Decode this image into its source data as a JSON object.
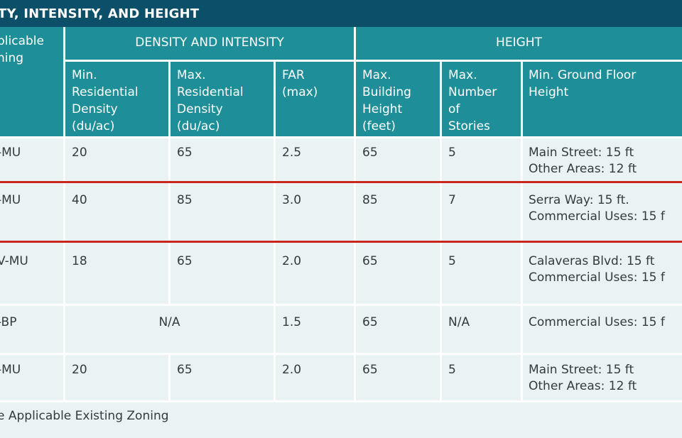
{
  "title": "TY, INTENSITY, AND HEIGHT",
  "headers": {
    "zoning": "plicable\nning",
    "density_group": "DENSITY AND INTENSITY",
    "height_group": "HEIGHT",
    "min_res_density": "Min.\nResidential\nDensity\n(du/ac)",
    "max_res_density": "Max.\nResidential\nDensity\n(du/ac)",
    "far": "FAR\n(max)",
    "max_bldg_height": "Max.\nBuilding\nHeight\n(feet)",
    "max_stories": "Max.\nNumber\nof\nStories",
    "min_ground_floor": "Min. Ground Floor\nHeight"
  },
  "rows": [
    {
      "zone": "-MU",
      "min_density": "20",
      "max_density": "65",
      "far": "2.5",
      "height": "65",
      "stories": "5",
      "ground_floor": "Main Street: 15 ft\nOther Areas: 12 ft"
    },
    {
      "zone": "-MU",
      "min_density": "40",
      "max_density": "85",
      "far": "3.0",
      "height": "85",
      "stories": "7",
      "ground_floor": "Serra Way: 15 ft.\nCommercial Uses: 15 f"
    },
    {
      "zone": "V-MU",
      "min_density": "18",
      "max_density": "65",
      "far": "2.0",
      "height": "65",
      "stories": "5",
      "ground_floor": "Calaveras Blvd: 15 ft\nCommercial Uses: 15 f"
    },
    {
      "zone": "-BP",
      "density_na": "N/A",
      "far": "1.5",
      "height": "65",
      "stories": "N/A",
      "ground_floor": "Commercial Uses: 15 f"
    },
    {
      "zone": "-MU",
      "min_density": "20",
      "max_density": "65",
      "far": "2.0",
      "height": "65",
      "stories": "5",
      "ground_floor": "Main Street: 15 ft\nOther Areas: 12 ft"
    }
  ],
  "footnote": "e Applicable Existing Zoning",
  "colors": {
    "title_bg": "#0b4f68",
    "header_bg": "#1e8f99",
    "body_bg": "#eaf3f4",
    "highlight": "#c8261e"
  }
}
